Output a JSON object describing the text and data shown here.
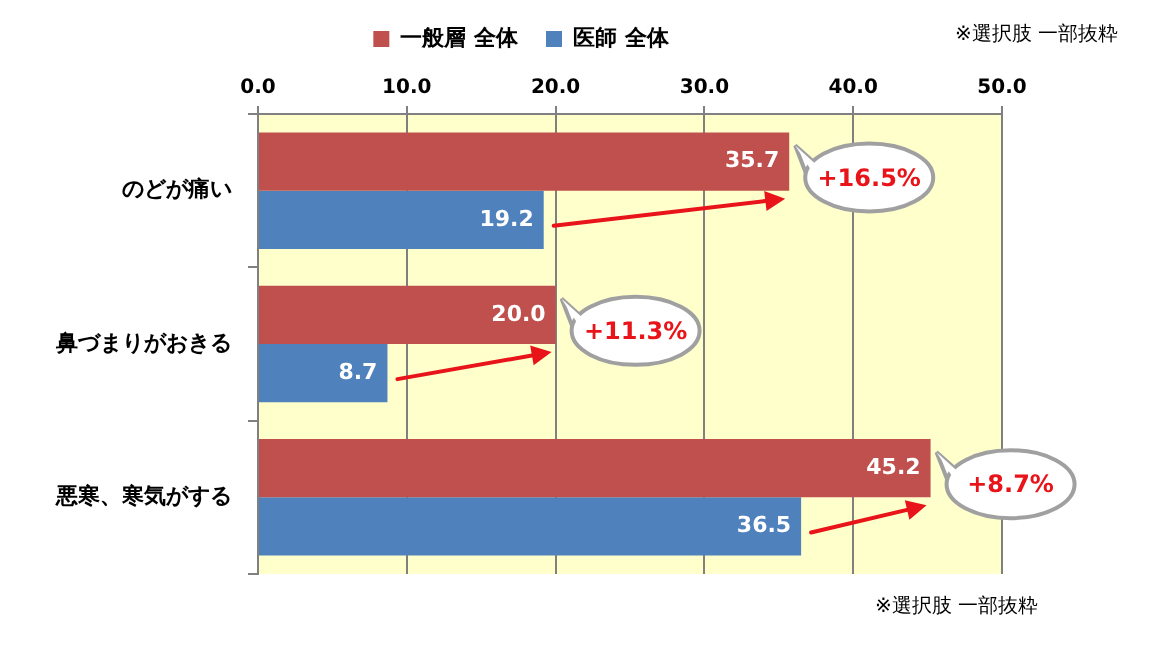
{
  "chart_data": {
    "type": "bar",
    "orientation": "horizontal",
    "categories": [
      "のどが痛い",
      "鼻づまりがおきる",
      "悪寒、寒気がする"
    ],
    "series": [
      {
        "name": "一般層 全体",
        "color": "#c0504d",
        "values": [
          35.7,
          20.0,
          45.2
        ],
        "value_labels": [
          "35.7",
          "20.0",
          "45.2"
        ]
      },
      {
        "name": "医師 全体",
        "color": "#4f81bd",
        "values": [
          19.2,
          8.7,
          36.5
        ],
        "value_labels": [
          "19.2",
          "8.7",
          "36.5"
        ]
      }
    ],
    "xlim": [
      0,
      50
    ],
    "xticks": [
      {
        "value": 0,
        "label": "0.0"
      },
      {
        "value": 10,
        "label": "10.0"
      },
      {
        "value": 20,
        "label": "20.0"
      },
      {
        "value": 30,
        "label": "30.0"
      },
      {
        "value": 40,
        "label": "40.0"
      },
      {
        "value": 50,
        "label": "50.0"
      }
    ],
    "grid": "x",
    "legend": "top",
    "annotations": [
      "※選択肢 一部抜粋",
      "※選択肢 一部抜粋",
      {
        "text": "+16.5%",
        "x": 35.7,
        "y": "のどが痛い"
      },
      {
        "text": "+11.3%",
        "x": 20.0,
        "y": "鼻づまりがおきる"
      },
      {
        "text": "+8.7%",
        "x": 45.2,
        "y": "悪寒、寒気がする"
      }
    ]
  }
}
